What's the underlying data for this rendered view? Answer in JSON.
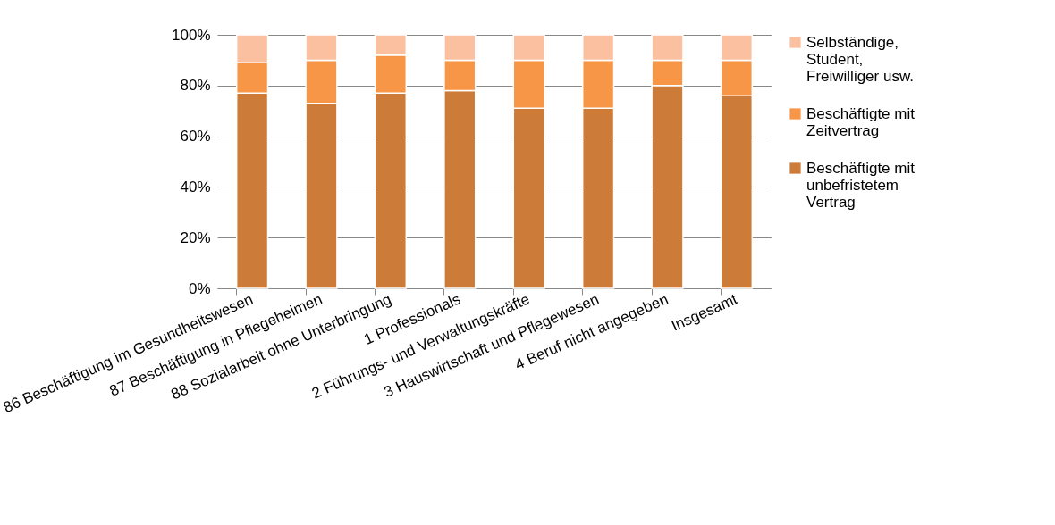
{
  "chart_data": {
    "type": "bar",
    "stacked": true,
    "categories": [
      "86 Beschäftigung im Gesundheitswesen",
      "87 Beschäftigung in Pflegeheimen",
      "88 Sozialarbeit ohne Unterbringung",
      "1 Professionals",
      "2 Führungs- und Verwaltungskräfte",
      "3 Hauswirtschaft und Pflegewesen",
      "4 Beruf nicht angegeben",
      "Insgesamt"
    ],
    "series": [
      {
        "name": "Beschäftigte mit unbefristetem Vertrag",
        "color": "#cd7b38",
        "values": [
          77,
          73,
          77,
          78,
          71,
          71,
          80,
          76
        ]
      },
      {
        "name": "Beschäftigte mit Zeitvertrag",
        "color": "#f79646",
        "values": [
          12,
          17,
          15,
          12,
          19,
          19,
          10,
          14
        ]
      },
      {
        "name": "Selbständige, Student, Freiwilliger usw.",
        "color": "#fac0a0",
        "values": [
          11,
          10,
          8,
          10,
          10,
          10,
          10,
          10
        ]
      }
    ],
    "ylim": [
      0,
      100
    ],
    "yticks": [
      {
        "value": 0,
        "label": "0%"
      },
      {
        "value": 20,
        "label": "20%"
      },
      {
        "value": 40,
        "label": "40%"
      },
      {
        "value": 60,
        "label": "60%"
      },
      {
        "value": 80,
        "label": "80%"
      },
      {
        "value": 100,
        "label": "100%"
      }
    ],
    "grid": "y",
    "legend": "right"
  }
}
